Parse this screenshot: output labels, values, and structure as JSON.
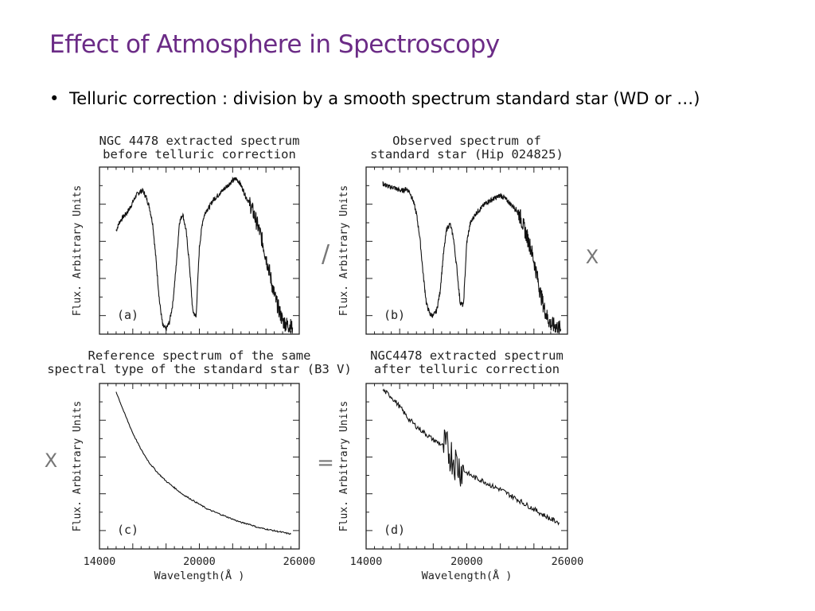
{
  "slide": {
    "title": "Effect of Atmosphere in Spectroscopy",
    "bullet": "Telluric correction : division by a smooth spectrum standard star (WD or …)"
  },
  "operators": {
    "divide": "/",
    "multiply": "X",
    "equals": "="
  },
  "chart_data": [
    {
      "type": "line",
      "panel_label": "(a)",
      "title_lines": [
        "NGC 4478 extracted spectrum",
        "before telluric correction"
      ],
      "ylabel": "Flux. Arbitrary Units",
      "xlabel": "",
      "xlim": [
        14000,
        26000
      ],
      "ylim": [
        0,
        1
      ],
      "x_ticklabels": [],
      "series": [
        {
          "x": [
            15000,
            15200,
            15400,
            15600,
            15800,
            16000,
            16200,
            16400,
            16600,
            16800,
            17000,
            17200,
            17400,
            17600,
            17800,
            18000,
            18200,
            18400,
            18600,
            18800,
            19000,
            19200,
            19400,
            19600,
            19800,
            20000,
            20200,
            20400,
            20600,
            20800,
            21000,
            21200,
            21400,
            21600,
            21800,
            22000,
            22200,
            22400,
            22600,
            22800,
            23000,
            23200,
            23400,
            23600,
            23800,
            24000,
            24200,
            24400,
            24600,
            24800,
            25000,
            25200,
            25400,
            25600
          ],
          "y": [
            0.62,
            0.67,
            0.7,
            0.72,
            0.75,
            0.79,
            0.83,
            0.85,
            0.86,
            0.82,
            0.76,
            0.66,
            0.44,
            0.2,
            0.05,
            0.03,
            0.07,
            0.18,
            0.4,
            0.67,
            0.72,
            0.62,
            0.42,
            0.14,
            0.1,
            0.52,
            0.68,
            0.74,
            0.76,
            0.8,
            0.82,
            0.84,
            0.86,
            0.88,
            0.9,
            0.92,
            0.93,
            0.91,
            0.87,
            0.82,
            0.79,
            0.74,
            0.68,
            0.62,
            0.55,
            0.46,
            0.38,
            0.28,
            0.2,
            0.14,
            0.08,
            0.06,
            0.05,
            0.04
          ]
        }
      ]
    },
    {
      "type": "line",
      "panel_label": "(b)",
      "title_lines": [
        "Observed spectrum of",
        "standard star (Hip 024825)"
      ],
      "ylabel": "Flux. Arbitrary Units",
      "xlabel": "",
      "xlim": [
        14000,
        26000
      ],
      "ylim": [
        0,
        1
      ],
      "x_ticklabels": [],
      "series": [
        {
          "x": [
            15000,
            15200,
            15400,
            15600,
            15800,
            16000,
            16200,
            16400,
            16600,
            16800,
            17000,
            17200,
            17400,
            17600,
            17800,
            18000,
            18200,
            18400,
            18600,
            18800,
            19000,
            19200,
            19400,
            19600,
            19800,
            20000,
            20200,
            20400,
            20600,
            20800,
            21000,
            21200,
            21400,
            21600,
            21800,
            22000,
            22200,
            22400,
            22600,
            22800,
            23000,
            23200,
            23400,
            23600,
            23800,
            24000,
            24200,
            24400,
            24600,
            24800,
            25000,
            25200,
            25400,
            25600
          ],
          "y": [
            0.9,
            0.89,
            0.88,
            0.88,
            0.87,
            0.86,
            0.86,
            0.87,
            0.85,
            0.8,
            0.72,
            0.58,
            0.36,
            0.18,
            0.12,
            0.11,
            0.14,
            0.25,
            0.47,
            0.63,
            0.66,
            0.58,
            0.4,
            0.19,
            0.17,
            0.55,
            0.66,
            0.7,
            0.73,
            0.75,
            0.77,
            0.79,
            0.8,
            0.81,
            0.82,
            0.83,
            0.82,
            0.8,
            0.78,
            0.76,
            0.74,
            0.7,
            0.64,
            0.58,
            0.52,
            0.44,
            0.34,
            0.24,
            0.16,
            0.1,
            0.06,
            0.05,
            0.04,
            0.03
          ]
        }
      ]
    },
    {
      "type": "line",
      "panel_label": "(c)",
      "title_lines": [
        "Reference spectrum of the same",
        "spectral type of the standard star (B3 V)"
      ],
      "ylabel": "Flux. Arbitrary Units",
      "xlabel": "Wavelength(Å )",
      "xlim": [
        14000,
        26000
      ],
      "ylim": [
        0,
        1
      ],
      "x_ticklabels": [
        "14000",
        "20000",
        "26000"
      ],
      "series": [
        {
          "x": [
            15000,
            15500,
            16000,
            16500,
            17000,
            17500,
            18000,
            18500,
            19000,
            19500,
            20000,
            20500,
            21000,
            21500,
            22000,
            22500,
            23000,
            23500,
            24000,
            24500,
            25000,
            25500
          ],
          "y": [
            0.95,
            0.82,
            0.7,
            0.6,
            0.52,
            0.46,
            0.41,
            0.37,
            0.33,
            0.3,
            0.27,
            0.24,
            0.22,
            0.2,
            0.18,
            0.16,
            0.15,
            0.13,
            0.12,
            0.11,
            0.1,
            0.09
          ]
        }
      ]
    },
    {
      "type": "line",
      "panel_label": "(d)",
      "title_lines": [
        "NGC4478 extracted spectrum",
        "after telluric correction"
      ],
      "ylabel": "Flux. Arbitrary Units",
      "xlabel": "Wavelength(Å )",
      "xlim": [
        14000,
        26000
      ],
      "ylim": [
        0,
        1
      ],
      "x_ticklabels": [
        "14000",
        "20000",
        "26000"
      ],
      "series": [
        {
          "x": [
            15000,
            15500,
            16000,
            16500,
            17000,
            17500,
            18000,
            18500,
            19000,
            19500,
            20000,
            20500,
            21000,
            21500,
            22000,
            22500,
            23000,
            23500,
            24000,
            24500,
            25000,
            25500
          ],
          "y": [
            0.96,
            0.92,
            0.86,
            0.79,
            0.74,
            0.7,
            0.66,
            0.63,
            0.58,
            0.5,
            0.46,
            0.43,
            0.41,
            0.38,
            0.36,
            0.33,
            0.3,
            0.27,
            0.24,
            0.21,
            0.18,
            0.16
          ]
        }
      ]
    }
  ]
}
